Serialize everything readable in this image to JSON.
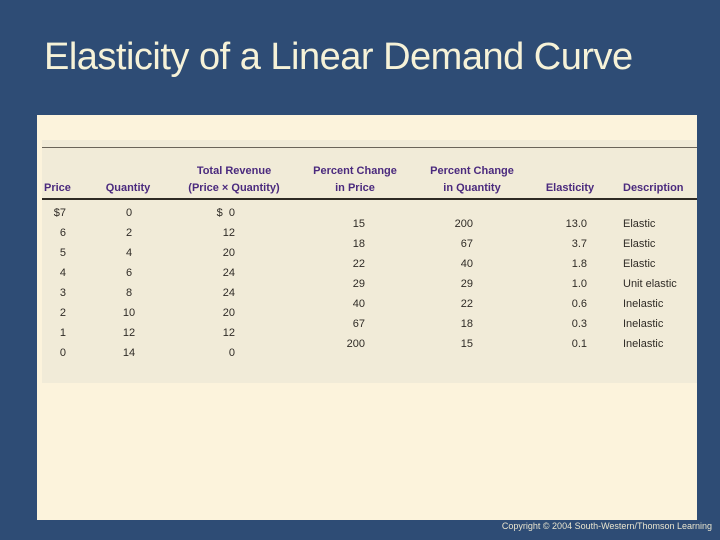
{
  "slide": {
    "title": "Elasticity of a Linear Demand Curve",
    "copyright": "Copyright © 2004  South-Western/Thomson Learning"
  },
  "colors": {
    "background_blue": "#2E4C75",
    "panel_cream": "#FCF3DC",
    "table_beige": "#F1EBD8",
    "header_purple": "#4B2A7E",
    "title_cream": "#F6F2D8",
    "cell_text": "#2F2B26"
  },
  "table": {
    "headers": {
      "price": "Price",
      "quantity": "Quantity",
      "revenue_line1": "Total Revenue",
      "revenue_line2": "(Price × Quantity)",
      "pct_price_line1": "Percent Change",
      "pct_price_line2": "in Price",
      "pct_qty_line1": "Percent Change",
      "pct_qty_line2": "in Quantity",
      "elasticity": "Elasticity",
      "description": "Description"
    },
    "rows": {
      "price": [
        "$7",
        "6",
        "5",
        "4",
        "3",
        "2",
        "1",
        "0"
      ],
      "quantity": [
        "0",
        "2",
        "4",
        "6",
        "8",
        "10",
        "12",
        "14"
      ],
      "revenue": [
        "$  0",
        "12",
        "20",
        "24",
        "24",
        "20",
        "12",
        "0"
      ]
    },
    "staggered": {
      "pct_price": [
        "15",
        "18",
        "22",
        "29",
        "40",
        "67",
        "200"
      ],
      "pct_qty": [
        "200",
        "67",
        "40",
        "29",
        "22",
        "18",
        "15"
      ],
      "elasticity": [
        "13.0",
        "3.7",
        "1.8",
        "1.0",
        "0.6",
        "0.3",
        "0.1"
      ],
      "description": [
        "Elastic",
        "Elastic",
        "Elastic",
        "Unit elastic",
        "Inelastic",
        "Inelastic",
        "Inelastic"
      ]
    }
  },
  "chart_data": {
    "type": "table",
    "title": "Elasticity of a Linear Demand Curve",
    "columns": [
      "Price",
      "Quantity",
      "Total Revenue (Price × Quantity)",
      "Percent Change in Price",
      "Percent Change in Quantity",
      "Elasticity",
      "Description"
    ],
    "price": [
      7,
      6,
      5,
      4,
      3,
      2,
      1,
      0
    ],
    "quantity": [
      0,
      2,
      4,
      6,
      8,
      10,
      12,
      14
    ],
    "total_revenue": [
      0,
      12,
      20,
      24,
      24,
      20,
      12,
      0
    ],
    "percent_change_in_price": [
      15,
      18,
      22,
      29,
      40,
      67,
      200
    ],
    "percent_change_in_quantity": [
      200,
      67,
      40,
      29,
      22,
      18,
      15
    ],
    "elasticity": [
      13.0,
      3.7,
      1.8,
      1.0,
      0.6,
      0.3,
      0.1
    ],
    "description": [
      "Elastic",
      "Elastic",
      "Elastic",
      "Unit elastic",
      "Inelastic",
      "Inelastic",
      "Inelastic"
    ]
  }
}
